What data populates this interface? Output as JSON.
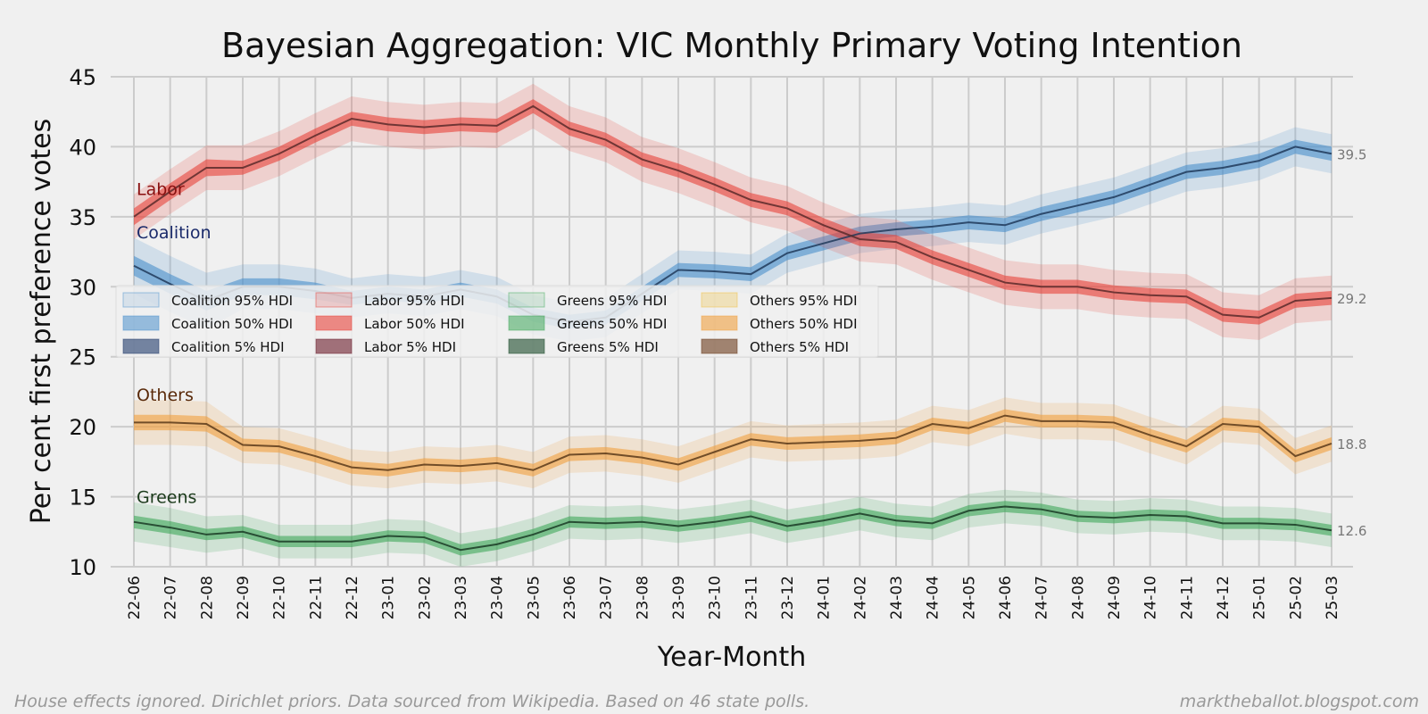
{
  "chart_data": {
    "type": "line",
    "title": "Bayesian Aggregation: VIC Monthly Primary Voting Intention",
    "xlabel": "Year-Month",
    "ylabel": "Per cent first preference votes",
    "ylim": [
      10,
      45
    ],
    "yticks": [
      "10",
      "15",
      "20",
      "25",
      "30",
      "35",
      "40",
      "45"
    ],
    "grid": true,
    "legend_position": "center-left",
    "categories": [
      "22-06",
      "22-07",
      "22-08",
      "22-09",
      "22-10",
      "22-11",
      "22-12",
      "23-01",
      "23-02",
      "23-03",
      "23-04",
      "23-05",
      "23-06",
      "23-07",
      "23-08",
      "23-09",
      "23-10",
      "23-11",
      "23-12",
      "24-01",
      "24-02",
      "24-03",
      "24-04",
      "24-05",
      "24-06",
      "24-07",
      "24-08",
      "24-09",
      "24-10",
      "24-11",
      "24-12",
      "25-01",
      "25-02",
      "25-03"
    ],
    "series": [
      {
        "name": "Coalition",
        "label": "Coalition",
        "end_label": "39.5",
        "line_color": "#203a5a",
        "band_color": "#4a8fcc",
        "label_color": "#1a2a6a",
        "values": [
          31.5,
          30.2,
          29.0,
          30.0,
          30.0,
          29.7,
          29.2,
          29.5,
          29.3,
          29.8,
          29.3,
          28.0,
          27.5,
          27.8,
          29.5,
          31.2,
          31.1,
          30.9,
          32.4,
          33.1,
          33.8,
          34.1,
          34.3,
          34.6,
          34.4,
          35.2,
          35.8,
          36.4,
          37.3,
          38.2,
          38.5,
          39.0,
          40.0,
          39.5
        ],
        "hdi95": [
          2.0,
          2.0,
          2.0,
          1.6,
          1.6,
          1.6,
          1.4,
          1.4,
          1.4,
          1.4,
          1.4,
          1.4,
          1.4,
          1.4,
          1.4,
          1.4,
          1.4,
          1.4,
          1.4,
          1.4,
          1.4,
          1.4,
          1.4,
          1.4,
          1.4,
          1.4,
          1.4,
          1.4,
          1.4,
          1.4,
          1.4,
          1.4,
          1.4,
          1.4
        ],
        "hdi50": [
          0.7,
          0.7,
          0.7,
          0.6,
          0.6,
          0.6,
          0.5,
          0.5,
          0.5,
          0.5,
          0.5,
          0.5,
          0.5,
          0.5,
          0.5,
          0.5,
          0.5,
          0.5,
          0.5,
          0.5,
          0.5,
          0.5,
          0.5,
          0.5,
          0.5,
          0.5,
          0.5,
          0.5,
          0.5,
          0.5,
          0.5,
          0.5,
          0.5,
          0.5
        ]
      },
      {
        "name": "Labor",
        "label": "Labor",
        "end_label": "29.2",
        "line_color": "#5a2a2a",
        "band_color": "#e8423a",
        "label_color": "#8a1010",
        "values": [
          35.0,
          36.8,
          38.5,
          38.5,
          39.5,
          40.8,
          42.0,
          41.6,
          41.4,
          41.6,
          41.5,
          42.9,
          41.3,
          40.5,
          39.1,
          38.3,
          37.3,
          36.2,
          35.6,
          34.4,
          33.4,
          33.2,
          32.1,
          31.2,
          30.3,
          30.0,
          30.0,
          29.6,
          29.4,
          29.3,
          28.0,
          27.8,
          29.0,
          29.2
        ],
        "hdi95": [
          1.6,
          1.6,
          1.6,
          1.6,
          1.6,
          1.6,
          1.6,
          1.6,
          1.6,
          1.6,
          1.6,
          1.6,
          1.6,
          1.6,
          1.6,
          1.6,
          1.6,
          1.6,
          1.6,
          1.6,
          1.6,
          1.6,
          1.6,
          1.6,
          1.6,
          1.6,
          1.6,
          1.6,
          1.6,
          1.6,
          1.6,
          1.6,
          1.6,
          1.6
        ],
        "hdi50": [
          0.6,
          0.6,
          0.6,
          0.5,
          0.5,
          0.5,
          0.5,
          0.5,
          0.5,
          0.5,
          0.5,
          0.5,
          0.5,
          0.5,
          0.5,
          0.5,
          0.5,
          0.5,
          0.5,
          0.5,
          0.5,
          0.5,
          0.5,
          0.5,
          0.5,
          0.5,
          0.5,
          0.5,
          0.5,
          0.5,
          0.5,
          0.5,
          0.5,
          0.5
        ]
      },
      {
        "name": "Greens",
        "label": "Greens",
        "end_label": "12.6",
        "line_color": "#1a3a24",
        "band_color": "#3fa85a",
        "label_color": "#1a3a1a",
        "values": [
          13.2,
          12.8,
          12.3,
          12.5,
          11.8,
          11.8,
          11.8,
          12.2,
          12.1,
          11.2,
          11.6,
          12.3,
          13.2,
          13.1,
          13.2,
          12.9,
          13.2,
          13.6,
          12.9,
          13.3,
          13.8,
          13.3,
          13.1,
          14.0,
          14.3,
          14.1,
          13.6,
          13.5,
          13.7,
          13.6,
          13.1,
          13.1,
          13.0,
          12.6
        ],
        "hdi95": [
          1.4,
          1.4,
          1.3,
          1.2,
          1.2,
          1.2,
          1.2,
          1.2,
          1.2,
          1.2,
          1.2,
          1.2,
          1.2,
          1.2,
          1.2,
          1.2,
          1.2,
          1.2,
          1.2,
          1.2,
          1.2,
          1.2,
          1.2,
          1.2,
          1.2,
          1.2,
          1.2,
          1.2,
          1.2,
          1.2,
          1.2,
          1.2,
          1.2,
          1.2
        ],
        "hdi50": [
          0.45,
          0.45,
          0.4,
          0.4,
          0.4,
          0.4,
          0.4,
          0.4,
          0.4,
          0.4,
          0.4,
          0.4,
          0.4,
          0.4,
          0.4,
          0.4,
          0.4,
          0.4,
          0.4,
          0.4,
          0.4,
          0.4,
          0.4,
          0.4,
          0.4,
          0.4,
          0.4,
          0.4,
          0.4,
          0.4,
          0.4,
          0.4,
          0.4,
          0.4
        ]
      },
      {
        "name": "Others",
        "label": "Others",
        "end_label": "18.8",
        "line_color": "#5a3a1a",
        "band_color": "#f0a040",
        "label_color": "#5a2a0a",
        "values": [
          20.3,
          20.3,
          20.2,
          18.7,
          18.6,
          17.9,
          17.1,
          16.9,
          17.3,
          17.2,
          17.4,
          16.9,
          18.0,
          18.1,
          17.8,
          17.3,
          18.2,
          19.1,
          18.8,
          18.9,
          19.0,
          19.2,
          20.2,
          19.9,
          20.8,
          20.4,
          20.4,
          20.3,
          19.4,
          18.6,
          20.2,
          20.0,
          17.9,
          18.8
        ],
        "hdi95": [
          1.6,
          1.6,
          1.6,
          1.3,
          1.3,
          1.3,
          1.3,
          1.3,
          1.3,
          1.3,
          1.3,
          1.3,
          1.3,
          1.3,
          1.3,
          1.3,
          1.3,
          1.3,
          1.3,
          1.3,
          1.3,
          1.3,
          1.3,
          1.3,
          1.3,
          1.3,
          1.3,
          1.3,
          1.3,
          1.3,
          1.3,
          1.3,
          1.3,
          1.3
        ],
        "hdi50": [
          0.55,
          0.55,
          0.55,
          0.45,
          0.45,
          0.45,
          0.45,
          0.45,
          0.45,
          0.45,
          0.45,
          0.45,
          0.45,
          0.45,
          0.45,
          0.45,
          0.45,
          0.45,
          0.45,
          0.45,
          0.45,
          0.45,
          0.45,
          0.45,
          0.45,
          0.45,
          0.45,
          0.45,
          0.45,
          0.45,
          0.45,
          0.45,
          0.45,
          0.45
        ]
      }
    ],
    "legend": [
      {
        "label": "Coalition 95% HDI",
        "color": "#4a8fcc",
        "opacity": 0.15
      },
      {
        "label": "Coalition 50% HDI",
        "color": "#4a8fcc",
        "opacity": 0.55
      },
      {
        "label": "Coalition 5% HDI",
        "color": "#203a6a",
        "opacity": 0.6
      },
      {
        "label": "Labor 95% HDI",
        "color": "#e8423a",
        "opacity": 0.2
      },
      {
        "label": "Labor 50% HDI",
        "color": "#e8423a",
        "opacity": 0.6
      },
      {
        "label": "Labor 5% HDI",
        "color": "#6a1a2a",
        "opacity": 0.6
      },
      {
        "label": "Greens 95% HDI",
        "color": "#3fa85a",
        "opacity": 0.15
      },
      {
        "label": "Greens 50% HDI",
        "color": "#3fa85a",
        "opacity": 0.55
      },
      {
        "label": "Greens 5% HDI",
        "color": "#1a4a2a",
        "opacity": 0.6
      },
      {
        "label": "Others 95% HDI",
        "color": "#f0c040",
        "opacity": 0.3
      },
      {
        "label": "Others 50% HDI",
        "color": "#f0a040",
        "opacity": 0.6
      },
      {
        "label": "Others 5% HDI",
        "color": "#6a3a1a",
        "opacity": 0.6
      }
    ],
    "footnote_left": "House effects ignored. Dirichlet priors. Data sourced from Wikipedia. Based on 46 state polls.",
    "footnote_right": "marktheballot.blogspot.com"
  }
}
